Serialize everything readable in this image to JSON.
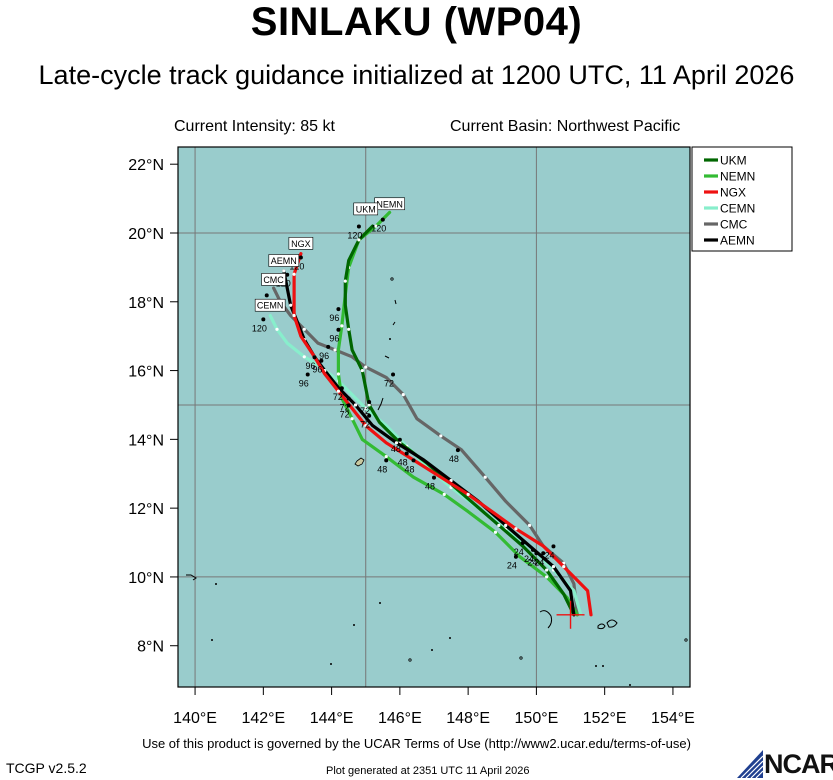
{
  "header": {
    "title": "SINLAKU (WP04)",
    "subtitle": "Late-cycle track guidance initialized at 1200 UTC, 11 April 2026",
    "current_intensity": "Current Intensity: 85 kt",
    "current_basin": "Current Basin: Northwest Pacific"
  },
  "footer": {
    "terms": "Use of this product is governed by the UCAR Terms of Use (http://www2.ucar.edu/terms-of-use)",
    "version": "TCGP v2.5.2",
    "generated": "Plot generated at 2351 UTC   11 April 2026",
    "logo_text": "NCAR"
  },
  "colors": {
    "ocean": "#99cccc",
    "grid": "#777777",
    "coast": "#000000",
    "UKM": "#006600",
    "NEMN": "#33bb33",
    "NGX": "#ee1111",
    "CEMN": "#88eecc",
    "CMC": "#666666",
    "AEMN": "#000000"
  },
  "chart_data": {
    "type": "map",
    "lon_range": [
      139.5,
      154.5
    ],
    "lat_range": [
      6.8,
      22.5
    ],
    "lon_ticks": [
      140,
      142,
      144,
      146,
      148,
      150,
      152,
      154
    ],
    "lat_ticks": [
      8,
      10,
      12,
      14,
      16,
      18,
      20,
      22
    ],
    "lon_tick_labels": [
      "140°E",
      "142°E",
      "144°E",
      "146°E",
      "148°E",
      "150°E",
      "152°E",
      "154°E"
    ],
    "lat_tick_labels": [
      "8°N",
      "10°N",
      "12°N",
      "14°N",
      "16°N",
      "18°N",
      "20°N",
      "22°N"
    ],
    "grid_lons": [
      140,
      145,
      150
    ],
    "grid_lats": [
      10,
      15,
      20
    ],
    "grid": true,
    "legend_position": "top-right, outside",
    "initial_position": {
      "lon": 151.0,
      "lat": 8.9
    },
    "series": [
      {
        "name": "UKM",
        "points": [
          [
            151.1,
            8.9
          ],
          [
            150.8,
            9.5
          ],
          [
            150.3,
            10.2
          ],
          [
            149.6,
            10.9
          ],
          [
            148.9,
            11.5
          ],
          [
            148.2,
            12.1
          ],
          [
            147.5,
            12.7
          ],
          [
            146.8,
            13.3
          ],
          [
            146.0,
            13.9
          ],
          [
            145.4,
            14.5
          ],
          [
            145.1,
            15.0
          ],
          [
            145.0,
            15.5
          ],
          [
            144.9,
            16.0
          ],
          [
            144.6,
            16.6
          ],
          [
            144.5,
            17.2
          ],
          [
            144.4,
            17.9
          ],
          [
            144.4,
            18.6
          ],
          [
            144.5,
            19.2
          ],
          [
            144.8,
            19.8
          ],
          [
            145.2,
            20.2
          ]
        ],
        "labels": [
          {
            "text": "24",
            "lon": 149.6,
            "lat": 10.9
          },
          {
            "text": "48",
            "lon": 146.0,
            "lat": 13.9
          },
          {
            "text": "72",
            "lon": 145.1,
            "lat": 15.0
          },
          {
            "text": "96",
            "lon": 144.2,
            "lat": 17.7
          },
          {
            "text": "120",
            "lon": 144.8,
            "lat": 20.1
          }
        ]
      },
      {
        "name": "NEMN",
        "points": [
          [
            151.2,
            8.9
          ],
          [
            150.9,
            9.4
          ],
          [
            150.3,
            10.0
          ],
          [
            149.5,
            10.6
          ],
          [
            148.8,
            11.3
          ],
          [
            148.0,
            11.9
          ],
          [
            147.3,
            12.4
          ],
          [
            146.4,
            12.9
          ],
          [
            145.6,
            13.5
          ],
          [
            144.9,
            14.0
          ],
          [
            144.6,
            14.6
          ],
          [
            144.3,
            15.2
          ],
          [
            144.2,
            15.9
          ],
          [
            144.2,
            16.6
          ],
          [
            144.3,
            17.3
          ],
          [
            144.4,
            18.2
          ],
          [
            144.5,
            19.0
          ],
          [
            144.8,
            19.8
          ],
          [
            145.3,
            20.2
          ],
          [
            145.7,
            20.6
          ]
        ],
        "labels": [
          {
            "text": "24",
            "lon": 149.4,
            "lat": 10.5
          },
          {
            "text": "48",
            "lon": 145.6,
            "lat": 13.3
          },
          {
            "text": "72",
            "lon": 144.5,
            "lat": 14.9
          },
          {
            "text": "96",
            "lon": 144.2,
            "lat": 17.1
          },
          {
            "text": "120",
            "lon": 145.5,
            "lat": 20.3
          }
        ]
      },
      {
        "name": "NGX",
        "points": [
          [
            151.6,
            8.9
          ],
          [
            151.5,
            9.6
          ],
          [
            150.8,
            10.3
          ],
          [
            150.2,
            10.9
          ],
          [
            149.4,
            11.4
          ],
          [
            148.7,
            11.9
          ],
          [
            148.0,
            12.4
          ],
          [
            147.2,
            12.9
          ],
          [
            146.4,
            13.4
          ],
          [
            145.6,
            13.9
          ],
          [
            145.0,
            14.4
          ],
          [
            144.6,
            14.9
          ],
          [
            144.2,
            15.4
          ],
          [
            143.8,
            15.9
          ],
          [
            143.5,
            16.4
          ],
          [
            143.1,
            17.0
          ],
          [
            142.9,
            17.6
          ],
          [
            142.9,
            18.2
          ],
          [
            142.9,
            18.8
          ],
          [
            143.1,
            19.4
          ]
        ],
        "labels": [
          {
            "text": "24",
            "lon": 150.0,
            "lat": 10.6
          },
          {
            "text": "48",
            "lon": 147.0,
            "lat": 12.8
          },
          {
            "text": "72",
            "lon": 145.1,
            "lat": 14.6
          },
          {
            "text": "96",
            "lon": 143.5,
            "lat": 16.3
          },
          {
            "text": "120",
            "lon": 143.1,
            "lat": 19.2
          }
        ]
      },
      {
        "name": "CEMN",
        "points": [
          [
            151.3,
            8.9
          ],
          [
            151.1,
            9.6
          ],
          [
            150.5,
            10.2
          ],
          [
            149.9,
            10.8
          ],
          [
            149.1,
            11.4
          ],
          [
            148.3,
            12.0
          ],
          [
            147.5,
            12.6
          ],
          [
            146.8,
            13.2
          ],
          [
            146.2,
            13.8
          ],
          [
            145.6,
            14.4
          ],
          [
            145.0,
            14.9
          ],
          [
            144.6,
            15.3
          ],
          [
            144.2,
            15.7
          ],
          [
            143.7,
            16.1
          ],
          [
            143.2,
            16.4
          ],
          [
            142.7,
            16.8
          ],
          [
            142.4,
            17.2
          ],
          [
            142.2,
            17.6
          ]
        ],
        "labels": [
          {
            "text": "24",
            "lon": 150.2,
            "lat": 10.6
          },
          {
            "text": "48",
            "lon": 146.4,
            "lat": 13.3
          },
          {
            "text": "72",
            "lon": 144.5,
            "lat": 15.1
          },
          {
            "text": "96",
            "lon": 143.3,
            "lat": 15.8
          },
          {
            "text": "120",
            "lon": 142.0,
            "lat": 17.4
          }
        ]
      },
      {
        "name": "CMC",
        "points": [
          [
            151.2,
            8.9
          ],
          [
            151.1,
            9.8
          ],
          [
            150.8,
            10.4
          ],
          [
            150.2,
            10.9
          ],
          [
            149.8,
            11.5
          ],
          [
            149.1,
            12.2
          ],
          [
            148.5,
            12.9
          ],
          [
            147.8,
            13.7
          ],
          [
            147.2,
            14.1
          ],
          [
            146.5,
            14.6
          ],
          [
            146.1,
            15.3
          ],
          [
            145.6,
            15.8
          ],
          [
            145.0,
            16.1
          ],
          [
            144.6,
            16.4
          ],
          [
            144.1,
            16.6
          ],
          [
            143.6,
            16.8
          ],
          [
            143.2,
            17.2
          ],
          [
            142.8,
            17.6
          ],
          [
            142.5,
            18.0
          ],
          [
            142.3,
            18.4
          ]
        ],
        "labels": [
          {
            "text": "24",
            "lon": 150.5,
            "lat": 10.8
          },
          {
            "text": "48",
            "lon": 147.7,
            "lat": 13.6
          },
          {
            "text": "72",
            "lon": 145.8,
            "lat": 15.8
          },
          {
            "text": "96",
            "lon": 143.9,
            "lat": 16.6
          },
          {
            "text": "120",
            "lon": 142.1,
            "lat": 18.1
          }
        ]
      },
      {
        "name": "AEMN",
        "points": [
          [
            151.1,
            8.9
          ],
          [
            151.0,
            9.6
          ],
          [
            150.5,
            10.3
          ],
          [
            149.8,
            10.9
          ],
          [
            149.1,
            11.5
          ],
          [
            148.3,
            12.2
          ],
          [
            147.5,
            12.8
          ],
          [
            146.7,
            13.4
          ],
          [
            145.9,
            13.9
          ],
          [
            145.2,
            14.4
          ],
          [
            144.7,
            15.0
          ],
          [
            144.2,
            15.5
          ],
          [
            143.8,
            16.0
          ],
          [
            143.5,
            16.4
          ],
          [
            143.2,
            16.9
          ],
          [
            143.0,
            17.4
          ],
          [
            142.8,
            17.9
          ],
          [
            142.7,
            18.4
          ],
          [
            142.6,
            18.9
          ]
        ],
        "labels": [
          {
            "text": "24",
            "lon": 149.9,
            "lat": 10.7
          },
          {
            "text": "48",
            "lon": 146.2,
            "lat": 13.5
          },
          {
            "text": "72",
            "lon": 144.3,
            "lat": 15.4
          },
          {
            "text": "96",
            "lon": 143.7,
            "lat": 16.2
          },
          {
            "text": "120",
            "lon": 142.7,
            "lat": 18.7
          }
        ]
      }
    ],
    "end_tags": [
      {
        "text": "NEMN",
        "lon": 145.7,
        "lat": 20.85
      },
      {
        "text": "UKM",
        "lon": 145.0,
        "lat": 20.7
      },
      {
        "text": "NGX",
        "lon": 143.1,
        "lat": 19.7
      },
      {
        "text": "AEMN",
        "lon": 142.6,
        "lat": 19.2
      },
      {
        "text": "CMC",
        "lon": 142.3,
        "lat": 18.65
      },
      {
        "text": "CEMN",
        "lon": 142.2,
        "lat": 17.9
      }
    ]
  }
}
